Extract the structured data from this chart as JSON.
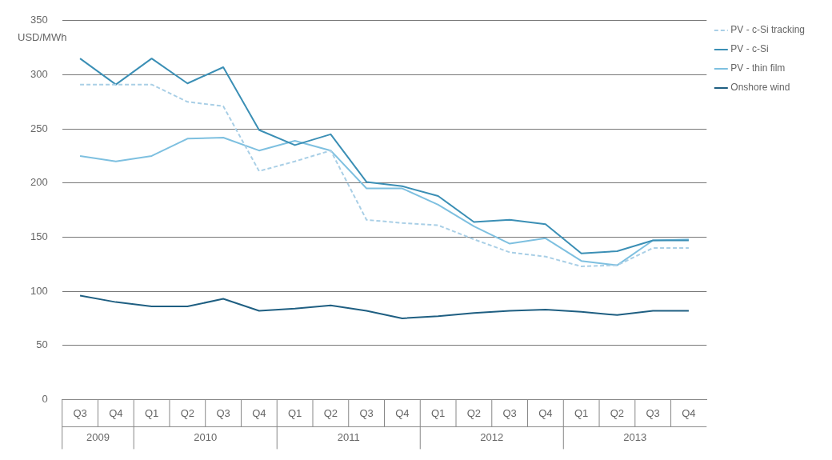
{
  "chart_data": {
    "type": "line",
    "ylabel": "USD/MWh",
    "categories": [
      "Q3",
      "Q4",
      "Q1",
      "Q2",
      "Q3",
      "Q4",
      "Q1",
      "Q2",
      "Q3",
      "Q4",
      "Q1",
      "Q2",
      "Q3",
      "Q4",
      "Q1",
      "Q2",
      "Q3",
      "Q4"
    ],
    "annotations": [
      "2009",
      "2010",
      "2011",
      "2012",
      "2013"
    ],
    "series": [
      {
        "name": "PV - c-Si tracking",
        "color": "#a9cfe6",
        "line_style": "dashed",
        "values": [
          291,
          291,
          291,
          275,
          271,
          211,
          220,
          230,
          166,
          163,
          161,
          148,
          136,
          132,
          123,
          124,
          140,
          140
        ]
      },
      {
        "name": "PV - c-Si",
        "color": "#3b8fb5",
        "values": [
          315,
          291,
          315,
          292,
          307,
          249,
          235,
          245,
          201,
          197,
          188,
          164,
          166,
          162,
          135,
          137,
          147,
          147
        ]
      },
      {
        "name": "PV - thin film",
        "color": "#7ec0e0",
        "values": [
          225,
          220,
          225,
          241,
          242,
          230,
          239,
          230,
          195,
          195,
          180,
          160,
          144,
          149,
          128,
          124,
          147,
          148
        ]
      },
      {
        "name": "Onshore wind",
        "color": "#1f5f82",
        "values": [
          96,
          90,
          86,
          86,
          93,
          82,
          84,
          87,
          82,
          75,
          77,
          80,
          82,
          83,
          81,
          78,
          82,
          82
        ]
      }
    ],
    "ylim": [
      0,
      350
    ],
    "yticks": [
      0,
      50,
      100,
      150,
      200,
      250,
      300,
      350
    ],
    "grid": "y",
    "legend": "top right",
    "marker": "none"
  }
}
